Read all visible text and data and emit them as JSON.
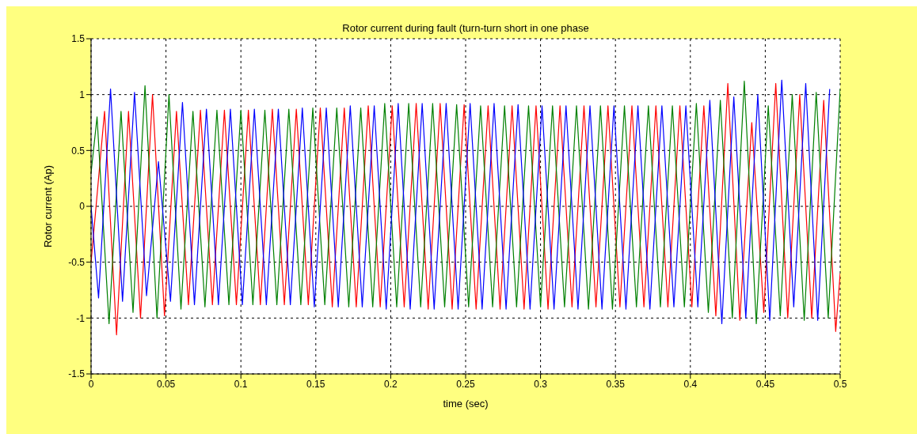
{
  "chart_data": {
    "type": "line",
    "title": "Rotor current during fault (turn-turn short in one phase",
    "xlabel": "time (sec)",
    "ylabel": "Rotor current (Ap)",
    "xlim": [
      0,
      0.5
    ],
    "xticks": [
      0,
      0.05,
      0.1,
      0.15,
      0.2,
      0.25,
      0.3,
      0.35,
      0.4,
      0.45,
      0.5
    ],
    "ylim": [
      -1.5,
      1.5
    ],
    "yticks": [
      -1.5,
      -1,
      -0.5,
      0,
      0.5,
      1,
      1.5
    ],
    "grid": true,
    "marker": "none",
    "line_style": "solid",
    "series": [
      {
        "color": "#ff0000",
        "x": [
          0,
          0.009,
          0.017,
          0.025,
          0.033,
          0.041,
          0.049,
          0.057,
          0.065,
          0.073,
          0.081,
          0.089,
          0.097,
          0.105,
          0.113,
          0.121,
          0.129,
          0.137,
          0.145,
          0.153,
          0.161,
          0.169,
          0.177,
          0.185,
          0.193,
          0.201,
          0.209,
          0.217,
          0.225,
          0.233,
          0.241,
          0.249,
          0.257,
          0.265,
          0.273,
          0.281,
          0.289,
          0.297,
          0.305,
          0.313,
          0.321,
          0.329,
          0.337,
          0.345,
          0.353,
          0.361,
          0.369,
          0.377,
          0.385,
          0.393,
          0.401,
          0.409,
          0.417,
          0.425,
          0.433,
          0.441,
          0.449,
          0.457,
          0.465,
          0.473,
          0.481,
          0.489,
          0.497,
          0.5
        ],
        "values": [
          -0.5,
          0.85,
          -1.15,
          0.85,
          -1.0,
          1.0,
          -0.98,
          0.85,
          -0.88,
          0.86,
          -0.88,
          0.86,
          -0.88,
          0.86,
          -0.88,
          0.87,
          -0.88,
          0.87,
          -0.88,
          0.88,
          -0.9,
          0.88,
          -0.9,
          0.9,
          -0.9,
          0.9,
          -0.9,
          0.92,
          -0.92,
          0.92,
          -0.92,
          0.91,
          -0.92,
          0.9,
          -0.92,
          0.9,
          -0.92,
          0.9,
          -0.92,
          0.9,
          -0.9,
          0.9,
          -0.9,
          0.9,
          -0.9,
          0.9,
          -0.9,
          0.9,
          -0.9,
          0.9,
          -0.9,
          0.9,
          -0.98,
          1.1,
          -1.02,
          0.75,
          -0.95,
          1.1,
          -1.0,
          1.0,
          -1.0,
          0.95,
          -1.12,
          -0.6
        ]
      },
      {
        "color": "#008000",
        "x": [
          0,
          0.004,
          0.012,
          0.02,
          0.028,
          0.036,
          0.044,
          0.052,
          0.06,
          0.068,
          0.076,
          0.084,
          0.092,
          0.1,
          0.108,
          0.116,
          0.124,
          0.132,
          0.14,
          0.148,
          0.156,
          0.164,
          0.172,
          0.18,
          0.188,
          0.196,
          0.204,
          0.212,
          0.22,
          0.228,
          0.236,
          0.244,
          0.252,
          0.26,
          0.268,
          0.276,
          0.284,
          0.292,
          0.3,
          0.308,
          0.316,
          0.324,
          0.332,
          0.34,
          0.348,
          0.356,
          0.364,
          0.372,
          0.38,
          0.388,
          0.396,
          0.404,
          0.412,
          0.42,
          0.428,
          0.436,
          0.444,
          0.452,
          0.46,
          0.468,
          0.476,
          0.484,
          0.492,
          0.5
        ],
        "values": [
          0.3,
          0.8,
          -1.05,
          0.85,
          -0.95,
          1.08,
          -1.0,
          1.0,
          -0.92,
          0.85,
          -0.9,
          0.86,
          -0.88,
          0.86,
          -0.88,
          0.86,
          -0.88,
          0.87,
          -0.88,
          0.88,
          -0.88,
          0.88,
          -0.9,
          0.88,
          -0.9,
          0.92,
          -0.9,
          0.92,
          -0.9,
          0.92,
          -0.9,
          0.91,
          -0.9,
          0.9,
          -0.9,
          0.9,
          -0.9,
          0.9,
          -0.9,
          0.9,
          -0.9,
          0.9,
          -0.92,
          0.9,
          -0.92,
          0.9,
          -0.9,
          0.9,
          -0.9,
          0.9,
          -0.9,
          0.92,
          -0.95,
          0.95,
          -1.0,
          1.12,
          -1.05,
          0.9,
          -0.98,
          1.0,
          -1.02,
          1.02,
          -1.0,
          1.05
        ]
      },
      {
        "color": "#0000ff",
        "x": [
          0,
          0.005,
          0.013,
          0.021,
          0.029,
          0.037,
          0.045,
          0.053,
          0.061,
          0.069,
          0.077,
          0.085,
          0.093,
          0.101,
          0.109,
          0.117,
          0.125,
          0.133,
          0.141,
          0.149,
          0.157,
          0.165,
          0.173,
          0.181,
          0.189,
          0.197,
          0.205,
          0.213,
          0.221,
          0.229,
          0.237,
          0.245,
          0.253,
          0.261,
          0.269,
          0.277,
          0.285,
          0.293,
          0.301,
          0.309,
          0.317,
          0.325,
          0.333,
          0.341,
          0.349,
          0.357,
          0.365,
          0.373,
          0.381,
          0.389,
          0.397,
          0.405,
          0.413,
          0.421,
          0.429,
          0.437,
          0.445,
          0.453,
          0.461,
          0.469,
          0.477,
          0.485,
          0.493
        ],
        "values": [
          0.0,
          -0.82,
          1.05,
          -0.85,
          1.02,
          -0.8,
          0.4,
          -0.85,
          0.93,
          -0.88,
          0.87,
          -0.88,
          0.87,
          -0.88,
          0.87,
          -0.88,
          0.87,
          -0.88,
          0.88,
          -0.9,
          0.88,
          -0.9,
          0.9,
          -0.9,
          0.9,
          -0.92,
          0.92,
          -0.92,
          0.92,
          -0.92,
          0.92,
          -0.92,
          0.92,
          -0.92,
          0.92,
          -0.92,
          0.91,
          -0.92,
          0.9,
          -0.92,
          0.9,
          -0.92,
          0.9,
          -0.92,
          0.9,
          -0.92,
          0.9,
          -0.92,
          0.9,
          -0.9,
          0.9,
          -0.9,
          0.95,
          -1.05,
          0.98,
          -1.0,
          1.0,
          -1.02,
          1.13,
          -0.9,
          1.1,
          -1.02,
          1.05
        ]
      }
    ]
  }
}
